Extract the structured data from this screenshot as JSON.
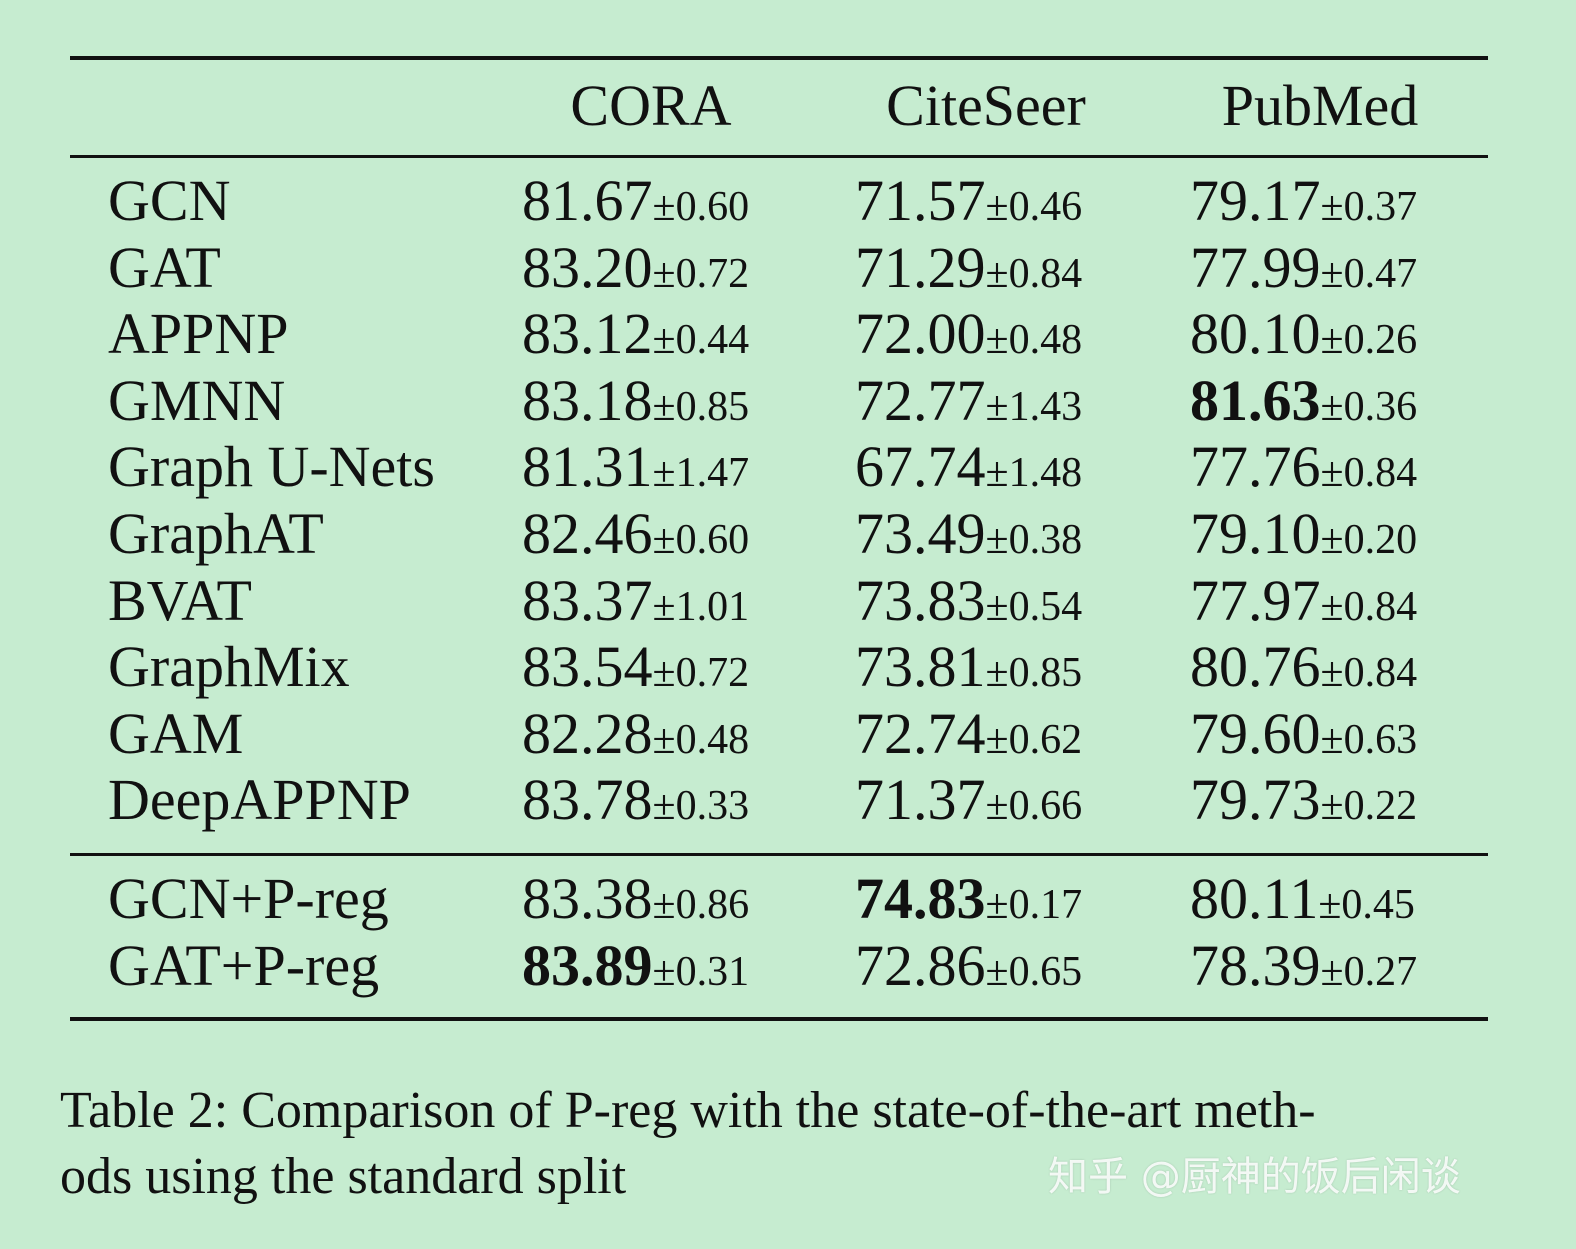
{
  "table": {
    "columns": [
      "CORA",
      "CiteSeer",
      "PubMed"
    ],
    "pm_symbol": "±",
    "groups": [
      {
        "rows": [
          {
            "method": "GCN",
            "cells": [
              {
                "mean": "81.67",
                "std": "0.60",
                "bold": false
              },
              {
                "mean": "71.57",
                "std": "0.46",
                "bold": false
              },
              {
                "mean": "79.17",
                "std": "0.37",
                "bold": false
              }
            ]
          },
          {
            "method": "GAT",
            "cells": [
              {
                "mean": "83.20",
                "std": "0.72",
                "bold": false
              },
              {
                "mean": "71.29",
                "std": "0.84",
                "bold": false
              },
              {
                "mean": "77.99",
                "std": "0.47",
                "bold": false
              }
            ]
          },
          {
            "method": "APPNP",
            "cells": [
              {
                "mean": "83.12",
                "std": "0.44",
                "bold": false
              },
              {
                "mean": "72.00",
                "std": "0.48",
                "bold": false
              },
              {
                "mean": "80.10",
                "std": "0.26",
                "bold": false
              }
            ]
          },
          {
            "method": "GMNN",
            "cells": [
              {
                "mean": "83.18",
                "std": "0.85",
                "bold": false
              },
              {
                "mean": "72.77",
                "std": "1.43",
                "bold": false
              },
              {
                "mean": "81.63",
                "std": "0.36",
                "bold": true
              }
            ]
          },
          {
            "method": "Graph U-Nets",
            "cells": [
              {
                "mean": "81.31",
                "std": "1.47",
                "bold": false
              },
              {
                "mean": "67.74",
                "std": "1.48",
                "bold": false
              },
              {
                "mean": "77.76",
                "std": "0.84",
                "bold": false
              }
            ]
          },
          {
            "method": "GraphAT",
            "cells": [
              {
                "mean": "82.46",
                "std": "0.60",
                "bold": false
              },
              {
                "mean": "73.49",
                "std": "0.38",
                "bold": false
              },
              {
                "mean": "79.10",
                "std": "0.20",
                "bold": false
              }
            ]
          },
          {
            "method": "BVAT",
            "cells": [
              {
                "mean": "83.37",
                "std": "1.01",
                "bold": false
              },
              {
                "mean": "73.83",
                "std": "0.54",
                "bold": false
              },
              {
                "mean": "77.97",
                "std": "0.84",
                "bold": false
              }
            ]
          },
          {
            "method": "GraphMix",
            "cells": [
              {
                "mean": "83.54",
                "std": "0.72",
                "bold": false
              },
              {
                "mean": "73.81",
                "std": "0.85",
                "bold": false
              },
              {
                "mean": "80.76",
                "std": "0.84",
                "bold": false
              }
            ]
          },
          {
            "method": "GAM",
            "cells": [
              {
                "mean": "82.28",
                "std": "0.48",
                "bold": false
              },
              {
                "mean": "72.74",
                "std": "0.62",
                "bold": false
              },
              {
                "mean": "79.60",
                "std": "0.63",
                "bold": false
              }
            ]
          },
          {
            "method": "DeepAPPNP",
            "cells": [
              {
                "mean": "83.78",
                "std": "0.33",
                "bold": false
              },
              {
                "mean": "71.37",
                "std": "0.66",
                "bold": false
              },
              {
                "mean": "79.73",
                "std": "0.22",
                "bold": false
              }
            ]
          }
        ]
      },
      {
        "rows": [
          {
            "method": "GCN+P-reg",
            "cells": [
              {
                "mean": "83.38",
                "std": "0.86",
                "bold": false
              },
              {
                "mean": "74.83",
                "std": "0.17",
                "bold": true
              },
              {
                "mean": "80.11",
                "std": "0.45",
                "bold": false
              }
            ]
          },
          {
            "method": "GAT+P-reg",
            "cells": [
              {
                "mean": "83.89",
                "std": "0.31",
                "bold": true
              },
              {
                "mean": "72.86",
                "std": "0.65",
                "bold": false
              },
              {
                "mean": "78.39",
                "std": "0.27",
                "bold": false
              }
            ]
          }
        ]
      }
    ]
  },
  "caption": {
    "line1": "Table 2: Comparison of P-reg with the state-of-the-art meth-",
    "line2": "ods using the standard split"
  },
  "watermark": "知乎 @厨神的饭后闲谈"
}
